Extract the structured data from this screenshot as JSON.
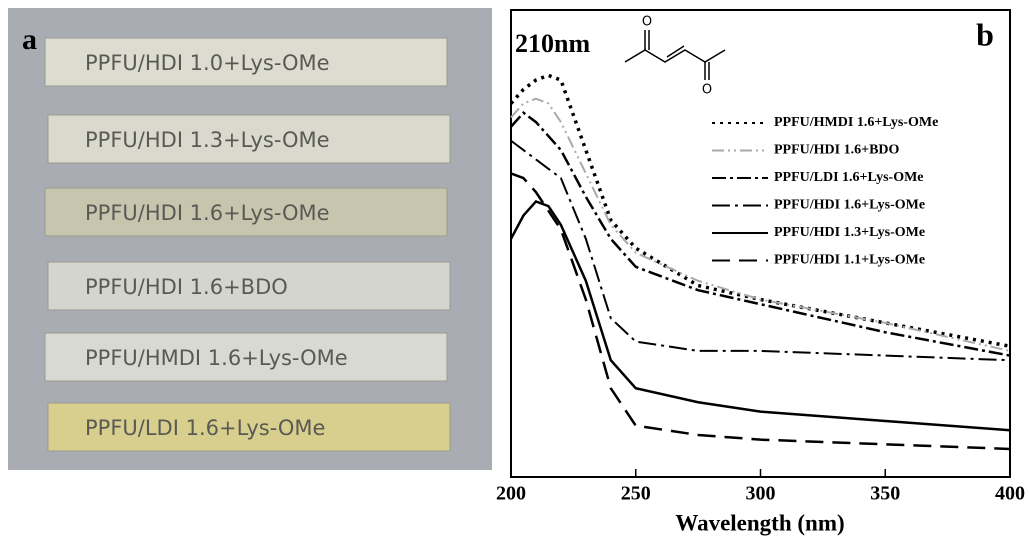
{
  "photo": {
    "panel_label": "a",
    "strips": [
      {
        "label": "PPFU/HDI 1.0+Lys-OMe",
        "color": "#dcdcd0"
      },
      {
        "label": "PPFU/HDI 1.3+Lys-OMe",
        "color": "#d9d9cd"
      },
      {
        "label": "PPFU/HDI 1.6+Lys-OMe",
        "color": "#c8c5ae"
      },
      {
        "label": "PPFU/HDI 1.6+BDO",
        "color": "#d5d5d0"
      },
      {
        "label": "PPFU/HMDI 1.6+Lys-OMe",
        "color": "#d9d9d4"
      },
      {
        "label": "PPFU/LDI 1.6+Lys-OMe",
        "color": "#d8cf8e"
      }
    ]
  },
  "chart_data": {
    "type": "line",
    "panel_label": "b",
    "annotation": "210nm",
    "structure_atoms": [
      "O",
      "O"
    ],
    "xlabel": "Wavelength (nm)",
    "x": [
      200,
      205,
      210,
      215,
      220,
      230,
      240,
      250,
      275,
      300,
      350,
      400
    ],
    "xlim": [
      200,
      400
    ],
    "xticks": [
      200,
      250,
      300,
      350,
      400
    ],
    "ylim": [
      0,
      1
    ],
    "series": [
      {
        "name": "PPFU/HMDI 1.6+Lys-OMe",
        "color": "#000000",
        "dash": "3,5",
        "width": 3.5,
        "values": [
          0.8,
          0.83,
          0.85,
          0.86,
          0.85,
          0.7,
          0.55,
          0.49,
          0.41,
          0.38,
          0.33,
          0.28
        ]
      },
      {
        "name": "PPFU/HDI 1.6+BDO",
        "color": "#aaaaaa",
        "dash": "12,4,2,4,2,4",
        "width": 2,
        "values": [
          0.77,
          0.8,
          0.81,
          0.8,
          0.76,
          0.65,
          0.54,
          0.48,
          0.42,
          0.38,
          0.33,
          0.27
        ]
      },
      {
        "name": "PPFU/LDI 1.6+Lys-OMe",
        "color": "#000000",
        "dash": "14,4,3,4",
        "width": 2.5,
        "values": [
          0.75,
          0.78,
          0.76,
          0.73,
          0.7,
          0.6,
          0.51,
          0.45,
          0.4,
          0.37,
          0.31,
          0.26
        ]
      },
      {
        "name": "PPFU/HDI 1.6+Lys-OMe",
        "color": "#000000",
        "dash": "18,5,3,5",
        "width": 2,
        "values": [
          0.72,
          0.7,
          0.68,
          0.66,
          0.64,
          0.51,
          0.34,
          0.29,
          0.27,
          0.27,
          0.26,
          0.25
        ]
      },
      {
        "name": "PPFU/HDI 1.3+Lys-OMe",
        "color": "#000000",
        "dash": "none",
        "width": 2.5,
        "values": [
          0.51,
          0.56,
          0.59,
          0.58,
          0.54,
          0.42,
          0.25,
          0.19,
          0.16,
          0.14,
          0.12,
          0.1
        ]
      },
      {
        "name": "PPFU/HDI 1.1+Lys-OMe",
        "color": "#000000",
        "dash": "18,9",
        "width": 2.5,
        "values": [
          0.65,
          0.64,
          0.61,
          0.57,
          0.53,
          0.38,
          0.19,
          0.11,
          0.09,
          0.08,
          0.07,
          0.06
        ]
      }
    ]
  }
}
